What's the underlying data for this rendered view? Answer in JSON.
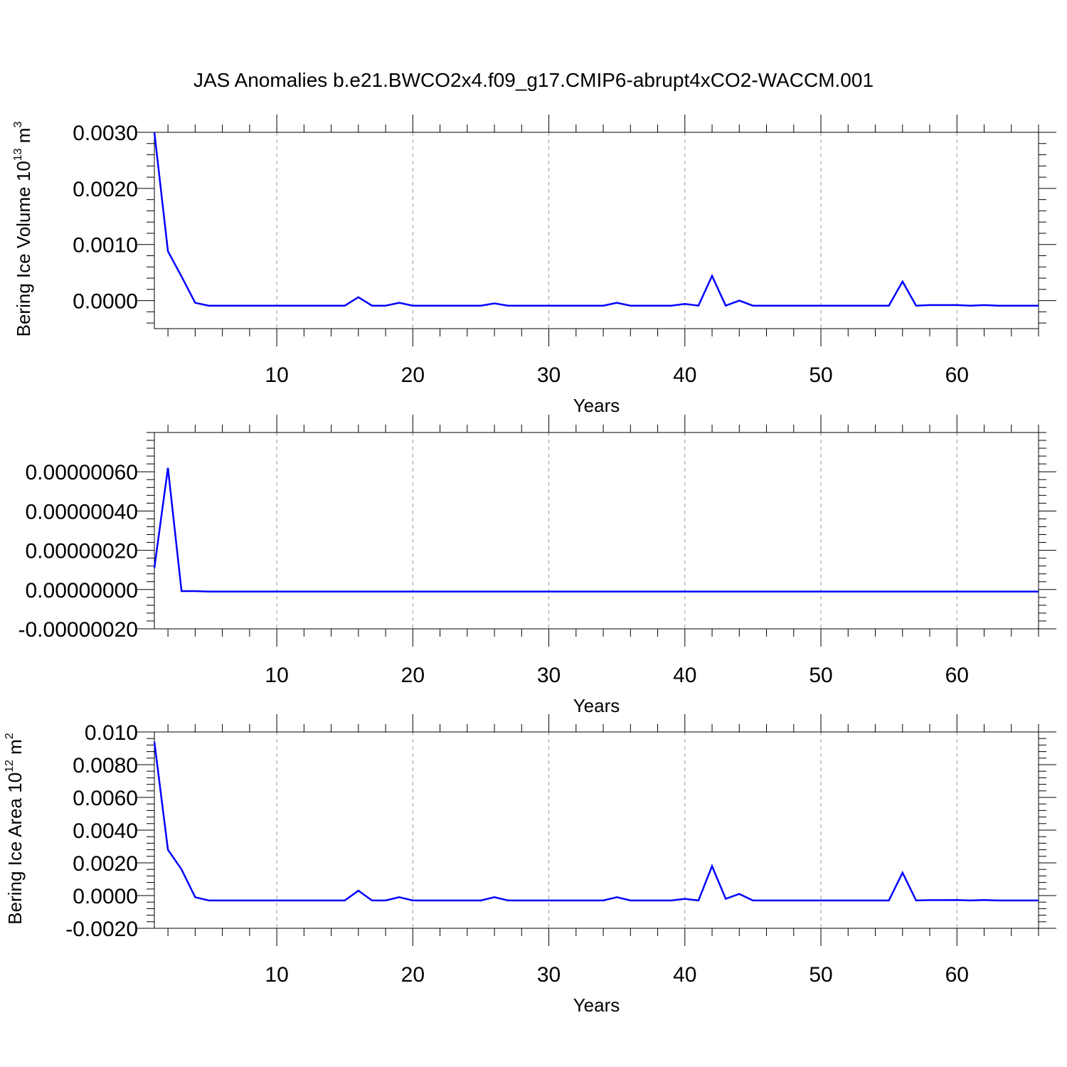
{
  "title": "JAS Anomalies b.e21.BWCO2x4.f09_g17.CMIP6-abrupt4xCO2-WACCM.001",
  "colors": {
    "line": "#0000ff",
    "axis": "#000000",
    "grid": "#999999"
  },
  "chart_data": [
    {
      "type": "line",
      "ylabel": {
        "base": "Bering Ice Volume 10",
        "exp1": "13",
        "mid": " m",
        "exp2": "3"
      },
      "xlabel": "Years",
      "xlim": [
        1,
        66
      ],
      "ylim": [
        -0.0005,
        0.003
      ],
      "x_ticks": [
        10,
        20,
        30,
        40,
        50,
        60
      ],
      "y_ticks": [
        0.0,
        0.001,
        0.002,
        0.003
      ],
      "y_tick_labels": [
        "0.0000",
        "0.0010",
        "0.0020",
        "0.0030"
      ],
      "grid": "vertical dashed at major x ticks",
      "series": [
        {
          "x": [
            1,
            2,
            3,
            4,
            5,
            6,
            7,
            8,
            9,
            10,
            11,
            12,
            13,
            14,
            15,
            16,
            17,
            18,
            19,
            20,
            21,
            22,
            23,
            24,
            25,
            26,
            27,
            28,
            29,
            30,
            31,
            32,
            33,
            34,
            35,
            36,
            37,
            38,
            39,
            40,
            41,
            42,
            43,
            44,
            45,
            46,
            47,
            48,
            49,
            50,
            51,
            52,
            53,
            54,
            55,
            56,
            57,
            58,
            59,
            60,
            61,
            62,
            63,
            64,
            65,
            66
          ],
          "values": [
            0.003,
            0.00088,
            0.00043,
            -4e-05,
            -9e-05,
            -9e-05,
            -9e-05,
            -9e-05,
            -9e-05,
            -9e-05,
            -9e-05,
            -9e-05,
            -9e-05,
            -9e-05,
            -9e-05,
            6e-05,
            -9e-05,
            -9e-05,
            -4e-05,
            -9e-05,
            -9e-05,
            -9e-05,
            -9e-05,
            -9e-05,
            -9e-05,
            -5e-05,
            -9e-05,
            -9e-05,
            -9e-05,
            -9e-05,
            -9e-05,
            -9e-05,
            -9e-05,
            -9e-05,
            -4e-05,
            -9e-05,
            -9e-05,
            -9e-05,
            -9e-05,
            -6e-05,
            -9e-05,
            0.00044,
            -9e-05,
            0.0,
            -9e-05,
            -9e-05,
            -9e-05,
            -9e-05,
            -9e-05,
            -9e-05,
            -9e-05,
            -9e-05,
            -9e-05,
            -9e-05,
            -9e-05,
            0.00034,
            -9e-05,
            -8e-05,
            -8e-05,
            -8e-05,
            -9e-05,
            -8e-05,
            -9e-05,
            -9e-05,
            -9e-05,
            -9e-05
          ]
        }
      ]
    },
    {
      "type": "line",
      "ylabel": {
        "base": "",
        "exp1": "",
        "mid": "",
        "exp2": ""
      },
      "xlabel": "Years",
      "xlim": [
        1,
        66
      ],
      "ylim": [
        -2e-07,
        8e-07
      ],
      "x_ticks": [
        10,
        20,
        30,
        40,
        50,
        60
      ],
      "y_ticks": [
        -2e-07,
        0.0,
        2e-07,
        4e-07,
        6e-07
      ],
      "y_tick_labels": [
        "-0.00000020",
        "0.00000000",
        "0.00000020",
        "0.00000040",
        "0.00000060"
      ],
      "grid": "vertical dashed at major x ticks",
      "series": [
        {
          "x": [
            1,
            2,
            3,
            4,
            5,
            6,
            7,
            8,
            9,
            10,
            11,
            12,
            13,
            14,
            15,
            16,
            17,
            18,
            19,
            20,
            21,
            22,
            23,
            24,
            25,
            26,
            27,
            28,
            29,
            30,
            31,
            32,
            33,
            34,
            35,
            36,
            37,
            38,
            39,
            40,
            41,
            42,
            43,
            44,
            45,
            46,
            47,
            48,
            49,
            50,
            51,
            52,
            53,
            54,
            55,
            56,
            57,
            58,
            59,
            60,
            61,
            62,
            63,
            64,
            65,
            66
          ],
          "values": [
            1.1e-07,
            6.2e-07,
            -8e-09,
            -8e-09,
            -1e-08,
            -1e-08,
            -1e-08,
            -1e-08,
            -1e-08,
            -1e-08,
            -1e-08,
            -1e-08,
            -1e-08,
            -1e-08,
            -1e-08,
            -1e-08,
            -1e-08,
            -1e-08,
            -1e-08,
            -1e-08,
            -1e-08,
            -1e-08,
            -1e-08,
            -1e-08,
            -1e-08,
            -1e-08,
            -1e-08,
            -1e-08,
            -1e-08,
            -1e-08,
            -1e-08,
            -1e-08,
            -1e-08,
            -1e-08,
            -1e-08,
            -1e-08,
            -1e-08,
            -1e-08,
            -1e-08,
            -1e-08,
            -1e-08,
            -1e-08,
            -1e-08,
            -1e-08,
            -1e-08,
            -1e-08,
            -1e-08,
            -1e-08,
            -1e-08,
            -1e-08,
            -1e-08,
            -1e-08,
            -1e-08,
            -1e-08,
            -1e-08,
            -1e-08,
            -1e-08,
            -1e-08,
            -1e-08,
            -1e-08,
            -1e-08,
            -1e-08,
            -1e-08,
            -1e-08,
            -1e-08,
            -1e-08
          ]
        }
      ]
    },
    {
      "type": "line",
      "ylabel": {
        "base": "Bering Ice Area 10",
        "exp1": "12",
        "mid": " m",
        "exp2": "2"
      },
      "xlabel": "Years",
      "xlim": [
        1,
        66
      ],
      "ylim": [
        -0.002,
        0.01
      ],
      "x_ticks": [
        10,
        20,
        30,
        40,
        50,
        60
      ],
      "y_ticks": [
        -0.002,
        0.0,
        0.002,
        0.004,
        0.006,
        0.008,
        0.01
      ],
      "y_tick_labels": [
        "-0.0020",
        "0.0000",
        "0.0020",
        "0.0040",
        "0.0060",
        "0.0080",
        "0.010"
      ],
      "grid": "vertical dashed at major x ticks",
      "series": [
        {
          "x": [
            1,
            2,
            3,
            4,
            5,
            6,
            7,
            8,
            9,
            10,
            11,
            12,
            13,
            14,
            15,
            16,
            17,
            18,
            19,
            20,
            21,
            22,
            23,
            24,
            25,
            26,
            27,
            28,
            29,
            30,
            31,
            32,
            33,
            34,
            35,
            36,
            37,
            38,
            39,
            40,
            41,
            42,
            43,
            44,
            45,
            46,
            47,
            48,
            49,
            50,
            51,
            52,
            53,
            54,
            55,
            56,
            57,
            58,
            59,
            60,
            61,
            62,
            63,
            64,
            65,
            66
          ],
          "values": [
            0.0094,
            0.0028,
            0.0016,
            -0.0001,
            -0.0003,
            -0.0003,
            -0.0003,
            -0.0003,
            -0.0003,
            -0.0003,
            -0.0003,
            -0.0003,
            -0.0003,
            -0.0003,
            -0.0003,
            0.0003,
            -0.0003,
            -0.0003,
            -0.0001,
            -0.0003,
            -0.0003,
            -0.0003,
            -0.0003,
            -0.0003,
            -0.0003,
            -0.0001,
            -0.0003,
            -0.0003,
            -0.0003,
            -0.0003,
            -0.0003,
            -0.0003,
            -0.0003,
            -0.0003,
            -0.0001,
            -0.0003,
            -0.0003,
            -0.0003,
            -0.0003,
            -0.0002,
            -0.0003,
            0.0018,
            -0.0002,
            0.0001,
            -0.0003,
            -0.0003,
            -0.0003,
            -0.0003,
            -0.0003,
            -0.0003,
            -0.0003,
            -0.0003,
            -0.0003,
            -0.0003,
            -0.0003,
            0.0014,
            -0.0003,
            -0.00028,
            -0.00028,
            -0.00027,
            -0.0003,
            -0.00027,
            -0.0003,
            -0.0003,
            -0.0003,
            -0.0003
          ]
        }
      ]
    }
  ]
}
